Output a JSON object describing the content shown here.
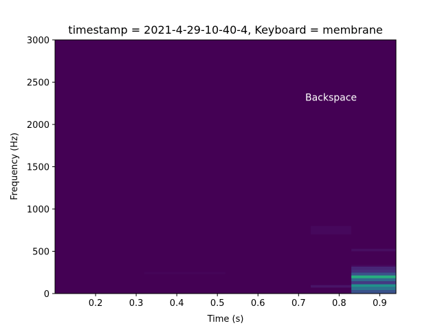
{
  "chart_data": {
    "type": "heatmap",
    "title": "timestamp = 2021-4-29-10-40-4, Keyboard = membrane",
    "xlabel": "Time (s)",
    "ylabel": "Frequency (Hz)",
    "xlim": [
      0.1,
      0.94
    ],
    "ylim": [
      0,
      3000
    ],
    "x_ticks": [
      0.2,
      0.3,
      0.4,
      0.5,
      0.6,
      0.7,
      0.8,
      0.9
    ],
    "y_ticks": [
      0,
      500,
      1000,
      1500,
      2000,
      2500,
      3000
    ],
    "colormap": "viridis",
    "background_color": "#440154",
    "annotation": {
      "text": "Backspace",
      "x": 0.78,
      "y": 2320,
      "color": "#ffffff"
    },
    "bins": [
      {
        "t0": 0.83,
        "t1": 0.94,
        "f0": 0,
        "f1": 40,
        "color": "#3a528b"
      },
      {
        "t0": 0.83,
        "t1": 0.94,
        "f0": 40,
        "f1": 75,
        "color": "#2c728e"
      },
      {
        "t0": 0.83,
        "t1": 0.94,
        "f0": 75,
        "f1": 110,
        "color": "#21918c"
      },
      {
        "t0": 0.83,
        "t1": 0.94,
        "f0": 110,
        "f1": 145,
        "color": "#443983"
      },
      {
        "t0": 0.83,
        "t1": 0.94,
        "f0": 145,
        "f1": 180,
        "color": "#31688e"
      },
      {
        "t0": 0.83,
        "t1": 0.94,
        "f0": 180,
        "f1": 215,
        "color": "#28ae80"
      },
      {
        "t0": 0.83,
        "t1": 0.94,
        "f0": 215,
        "f1": 250,
        "color": "#3b528b"
      },
      {
        "t0": 0.83,
        "t1": 0.94,
        "f0": 250,
        "f1": 285,
        "color": "#472d7b"
      },
      {
        "t0": 0.83,
        "t1": 0.94,
        "f0": 285,
        "f1": 320,
        "color": "#482677"
      },
      {
        "t0": 0.83,
        "t1": 0.94,
        "f0": 320,
        "f1": 340,
        "color": "#46085c"
      },
      {
        "t0": 0.83,
        "t1": 0.94,
        "f0": 500,
        "f1": 530,
        "color": "#470e61"
      },
      {
        "t0": 0.73,
        "t1": 0.83,
        "f0": 70,
        "f1": 100,
        "color": "#481467"
      },
      {
        "t0": 0.73,
        "t1": 0.83,
        "f0": 700,
        "f1": 800,
        "color": "#46085c"
      },
      {
        "t0": 0.32,
        "t1": 0.52,
        "f0": 230,
        "f1": 255,
        "color": "#450559"
      }
    ]
  }
}
